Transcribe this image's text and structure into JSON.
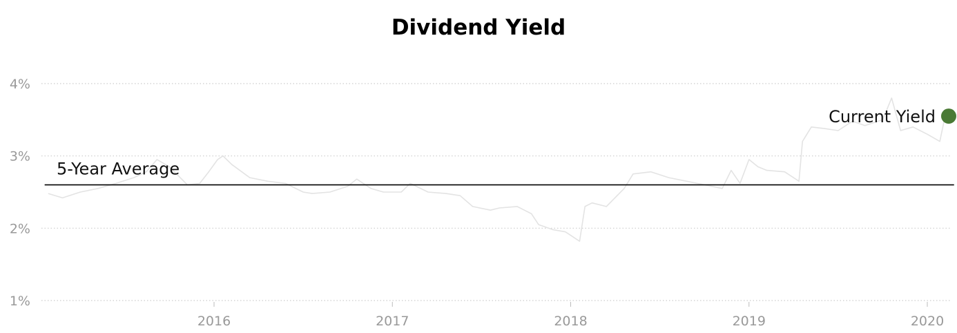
{
  "chart_data": {
    "type": "line",
    "title": "Dividend Yield",
    "xlabel": "",
    "ylabel": "",
    "y_ticks": [
      "4%",
      "3%",
      "2%",
      "1%"
    ],
    "y_tick_values": [
      4,
      3,
      2,
      1
    ],
    "x_ticks": [
      "2016",
      "2017",
      "2018",
      "2019",
      "2020"
    ],
    "x_tick_values": [
      2016,
      2017,
      2018,
      2019,
      2020
    ],
    "xlim": [
      2015.05,
      2020.15
    ],
    "ylim": [
      0.95,
      4.1
    ],
    "grid": true,
    "series": [
      {
        "name": "",
        "color": "#e3e3e3",
        "x": [
          2015.07,
          2015.15,
          2015.25,
          2015.35,
          2015.45,
          2015.55,
          2015.62,
          2015.68,
          2015.75,
          2015.85,
          2015.92,
          2015.97,
          2016.02,
          2016.05,
          2016.1,
          2016.2,
          2016.3,
          2016.4,
          2016.5,
          2016.55,
          2016.65,
          2016.75,
          2016.8,
          2016.88,
          2016.95,
          2017.05,
          2017.1,
          2017.2,
          2017.3,
          2017.38,
          2017.45,
          2017.55,
          2017.6,
          2017.7,
          2017.78,
          2017.82,
          2017.9,
          2017.97,
          2018.05,
          2018.08,
          2018.12,
          2018.2,
          2018.3,
          2018.35,
          2018.45,
          2018.55,
          2018.65,
          2018.75,
          2018.85,
          2018.9,
          2018.95,
          2019.0,
          2019.05,
          2019.1,
          2019.2,
          2019.28,
          2019.3,
          2019.35,
          2019.42,
          2019.5,
          2019.58,
          2019.65,
          2019.75,
          2019.8,
          2019.85,
          2019.92,
          2020.0,
          2020.07,
          2020.1
        ],
        "values": [
          2.48,
          2.42,
          2.5,
          2.55,
          2.62,
          2.7,
          2.78,
          2.95,
          2.85,
          2.6,
          2.62,
          2.78,
          2.95,
          3.0,
          2.88,
          2.7,
          2.65,
          2.62,
          2.5,
          2.48,
          2.5,
          2.58,
          2.68,
          2.55,
          2.5,
          2.5,
          2.62,
          2.5,
          2.48,
          2.45,
          2.3,
          2.25,
          2.28,
          2.3,
          2.2,
          2.05,
          1.98,
          1.95,
          1.82,
          2.3,
          2.35,
          2.3,
          2.55,
          2.75,
          2.78,
          2.7,
          2.65,
          2.6,
          2.55,
          2.8,
          2.62,
          2.95,
          2.85,
          2.8,
          2.78,
          2.65,
          3.2,
          3.4,
          3.38,
          3.35,
          3.48,
          3.42,
          3.5,
          3.8,
          3.35,
          3.4,
          3.3,
          3.2,
          3.55
        ]
      },
      {
        "name": "5-Year Average",
        "color": "#000000",
        "x": [
          2015.05,
          2020.15
        ],
        "values": [
          2.6,
          2.6
        ]
      }
    ],
    "current": {
      "name": "Current Yield",
      "x": 2020.12,
      "value": 3.55,
      "color": "#4a7a35"
    }
  }
}
